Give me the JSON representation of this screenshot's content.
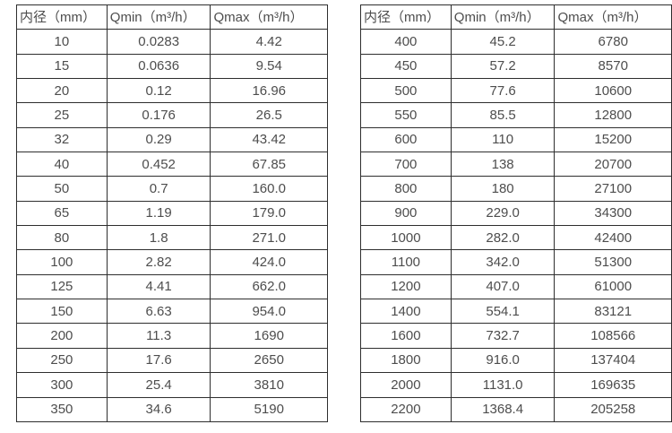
{
  "colors": {
    "border": "#2e2e2e",
    "text": "#4d4d4d",
    "background": "#ffffff"
  },
  "tables": [
    {
      "name": "flow-table-small-diameters",
      "headers": [
        "内径（mm）",
        "Qmin（m³/h）",
        "Qmax（m³/h）"
      ],
      "rows": [
        [
          "10",
          "0.0283",
          "4.42"
        ],
        [
          "15",
          "0.0636",
          "9.54"
        ],
        [
          "20",
          "0.12",
          "16.96"
        ],
        [
          "25",
          "0.176",
          "26.5"
        ],
        [
          "32",
          "0.29",
          "43.42"
        ],
        [
          "40",
          "0.452",
          "67.85"
        ],
        [
          "50",
          "0.7",
          "160.0"
        ],
        [
          "65",
          "1.19",
          "179.0"
        ],
        [
          "80",
          "1.8",
          "271.0"
        ],
        [
          "100",
          "2.82",
          "424.0"
        ],
        [
          "125",
          "4.41",
          "662.0"
        ],
        [
          "150",
          "6.63",
          "954.0"
        ],
        [
          "200",
          "11.3",
          "1690"
        ],
        [
          "250",
          "17.6",
          "2650"
        ],
        [
          "300",
          "25.4",
          "3810"
        ],
        [
          "350",
          "34.6",
          "5190"
        ]
      ]
    },
    {
      "name": "flow-table-large-diameters",
      "headers": [
        "内径（mm）",
        "Qmin（m³/h）",
        "Qmax（m³/h）"
      ],
      "rows": [
        [
          "400",
          "45.2",
          "6780"
        ],
        [
          "450",
          "57.2",
          "8570"
        ],
        [
          "500",
          "77.6",
          "10600"
        ],
        [
          "550",
          "85.5",
          "12800"
        ],
        [
          "600",
          "110",
          "15200"
        ],
        [
          "700",
          "138",
          "20700"
        ],
        [
          "800",
          "180",
          "27100"
        ],
        [
          "900",
          "229.0",
          "34300"
        ],
        [
          "1000",
          "282.0",
          "42400"
        ],
        [
          "1100",
          "342.0",
          "51300"
        ],
        [
          "1200",
          "407.0",
          "61000"
        ],
        [
          "1400",
          "554.1",
          "83121"
        ],
        [
          "1600",
          "732.7",
          "108566"
        ],
        [
          "1800",
          "916.0",
          "137404"
        ],
        [
          "2000",
          "1131.0",
          "169635"
        ],
        [
          "2200",
          "1368.4",
          "205258"
        ]
      ]
    }
  ]
}
